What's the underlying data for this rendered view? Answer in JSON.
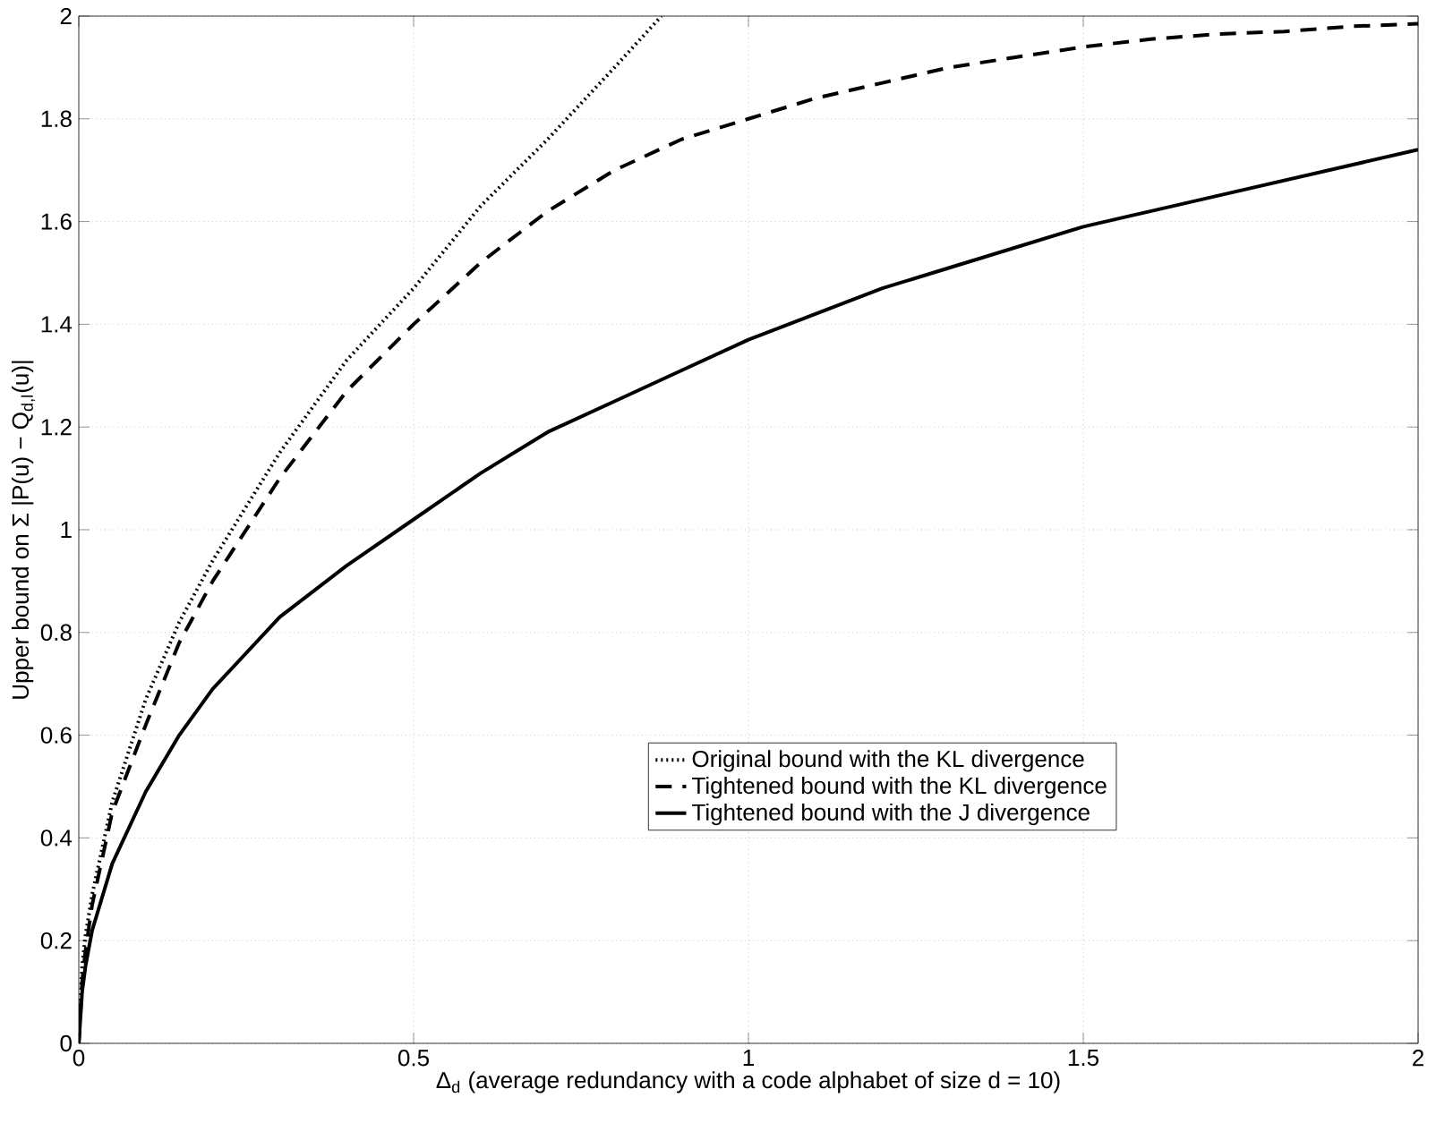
{
  "chart_data": {
    "type": "line",
    "xlabel": "Δ$_{d}$ (average redundancy with a code alphabet of size d = 10)",
    "ylabel": "Upper bound on   Σ |P(u) − Q$_{d,l}$(u)|",
    "xlim": [
      0,
      2
    ],
    "ylim": [
      0,
      2
    ],
    "xticks": [
      0,
      0.5,
      1,
      1.5,
      2
    ],
    "yticks": [
      0,
      0.2,
      0.4,
      0.6,
      0.8,
      1,
      1.2,
      1.4,
      1.6,
      1.8,
      2
    ],
    "grid": true,
    "legend": "center",
    "marker": "none",
    "series": [
      {
        "name": "Original bound with the KL divergence",
        "color": "#000000",
        "line_style": "dotted",
        "x": [
          0,
          0.005,
          0.01,
          0.02,
          0.05,
          0.1,
          0.15,
          0.2,
          0.3,
          0.4,
          0.5,
          0.6,
          0.7,
          0.8,
          0.87
        ],
        "values": [
          0,
          0.15,
          0.21,
          0.29,
          0.47,
          0.67,
          0.82,
          0.94,
          1.15,
          1.33,
          1.47,
          1.63,
          1.76,
          1.9,
          2.0
        ]
      },
      {
        "name": "Tightened bound with the KL divergence",
        "color": "#000000",
        "line_style": "dashed",
        "x": [
          0,
          0.005,
          0.01,
          0.02,
          0.05,
          0.1,
          0.15,
          0.2,
          0.3,
          0.4,
          0.5,
          0.6,
          0.7,
          0.8,
          0.9,
          1.0,
          1.1,
          1.2,
          1.3,
          1.4,
          1.5,
          1.6,
          1.7,
          1.8,
          1.9,
          2.0
        ],
        "values": [
          0,
          0.12,
          0.18,
          0.27,
          0.45,
          0.62,
          0.78,
          0.9,
          1.1,
          1.27,
          1.4,
          1.52,
          1.62,
          1.7,
          1.76,
          1.8,
          1.84,
          1.87,
          1.9,
          1.92,
          1.94,
          1.955,
          1.965,
          1.97,
          1.98,
          1.985
        ]
      },
      {
        "name": "Tightened bound with the J divergence",
        "color": "#000000",
        "line_style": "solid",
        "x": [
          0,
          0.005,
          0.01,
          0.02,
          0.05,
          0.1,
          0.15,
          0.2,
          0.3,
          0.4,
          0.5,
          0.6,
          0.7,
          0.8,
          0.9,
          1.0,
          1.1,
          1.2,
          1.3,
          1.4,
          1.5,
          1.6,
          1.7,
          1.8,
          1.9,
          2.0
        ],
        "values": [
          0,
          0.1,
          0.15,
          0.22,
          0.35,
          0.49,
          0.6,
          0.69,
          0.83,
          0.93,
          1.02,
          1.11,
          1.19,
          1.25,
          1.31,
          1.37,
          1.42,
          1.47,
          1.51,
          1.55,
          1.59,
          1.62,
          1.65,
          1.68,
          1.71,
          1.74
        ]
      }
    ]
  }
}
